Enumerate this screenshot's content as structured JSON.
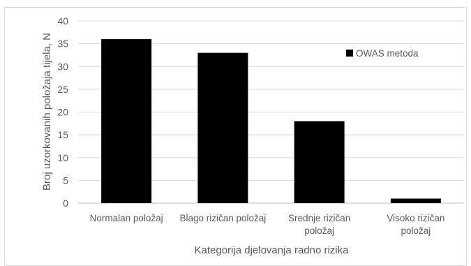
{
  "chart_data": {
    "type": "bar",
    "title": "",
    "xlabel": "Kategorija djelovanja radno rizika",
    "ylabel": "Broj uzorkovanih položaja tijela, N",
    "ylim": [
      0,
      40
    ],
    "yticks": [
      0,
      5,
      10,
      15,
      20,
      25,
      30,
      35,
      40
    ],
    "grid": true,
    "legend_position": "top-right",
    "categories": [
      [
        "Normalan položaj"
      ],
      [
        "Blago rizičan položaj"
      ],
      [
        "Srednje rizičan",
        "položaj"
      ],
      [
        "Visoko rizičan",
        "položaj"
      ]
    ],
    "series": [
      {
        "name": "OWAS metoda",
        "values": [
          36,
          33,
          18,
          1
        ],
        "color": "#000000"
      }
    ]
  }
}
